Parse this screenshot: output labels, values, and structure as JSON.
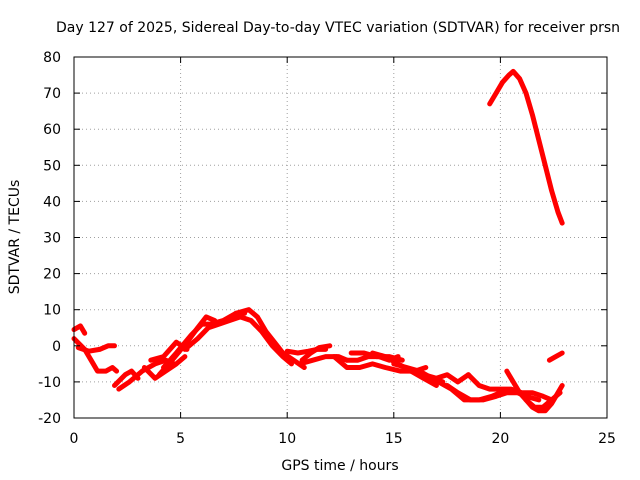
{
  "chart_data": {
    "type": "line",
    "title": "Day 127 of 2025, Sidereal Day-to-day VTEC variation (SDTVAR) for receiver prsn",
    "xlabel": "GPS time / hours",
    "ylabel": "SDTVAR / TECUs",
    "xlim": [
      0,
      25
    ],
    "ylim": [
      -20,
      80
    ],
    "xticks": [
      0,
      5,
      10,
      15,
      20,
      25
    ],
    "yticks": [
      -20,
      -10,
      0,
      10,
      20,
      30,
      40,
      50,
      60,
      70,
      80
    ],
    "grid": true,
    "legend": "none",
    "color": "#ff0000",
    "series": [
      {
        "name": "trace-1",
        "x": [
          0.0,
          0.3,
          0.5
        ],
        "y": [
          4.5,
          5.5,
          3.5
        ]
      },
      {
        "name": "trace-2",
        "x": [
          0.0,
          0.5,
          0.8,
          1.1,
          1.5,
          1.8,
          2.0
        ],
        "y": [
          2,
          -1,
          -4,
          -7,
          -7,
          -6,
          -7
        ]
      },
      {
        "name": "trace-3",
        "x": [
          0.2,
          0.7,
          1.2,
          1.6,
          1.9
        ],
        "y": [
          -0.5,
          -1.5,
          -1,
          0,
          0
        ]
      },
      {
        "name": "trace-4",
        "x": [
          1.9,
          2.4,
          2.7,
          3.0
        ],
        "y": [
          -11,
          -8,
          -7,
          -9
        ]
      },
      {
        "name": "trace-5",
        "x": [
          2.1,
          2.6,
          3.2,
          3.8,
          4.3,
          4.7
        ],
        "y": [
          -12,
          -10,
          -7,
          -5,
          -4,
          -5
        ]
      },
      {
        "name": "trace-6",
        "x": [
          3.3,
          3.8,
          4.3,
          4.8,
          5.2
        ],
        "y": [
          -6,
          -9,
          -7,
          -5,
          -3
        ]
      },
      {
        "name": "trace-7",
        "x": [
          3.6,
          4.2,
          4.8,
          5.3
        ],
        "y": [
          -4,
          -3,
          1,
          -1
        ]
      },
      {
        "name": "trace-8",
        "x": [
          4.0,
          4.6,
          5.3,
          5.8,
          6.2,
          6.6
        ],
        "y": [
          -8,
          -4,
          1,
          5,
          8,
          7
        ]
      },
      {
        "name": "trace-9",
        "x": [
          4.2,
          4.8,
          5.5,
          6.0,
          6.4,
          7.0,
          7.6,
          8.0
        ],
        "y": [
          -6,
          -2,
          3,
          6,
          6,
          7,
          9,
          9
        ]
      },
      {
        "name": "trace-10",
        "x": [
          5.2,
          5.8,
          6.3,
          6.8,
          7.3,
          7.8,
          8.3,
          8.8,
          9.3,
          9.8,
          10.2
        ],
        "y": [
          -1,
          2,
          5,
          6,
          7,
          8,
          7,
          4,
          0,
          -3,
          -5
        ]
      },
      {
        "name": "trace-11",
        "x": [
          7.6,
          8.2,
          8.6,
          9.0,
          9.4,
          9.8,
          10.3,
          10.8
        ],
        "y": [
          9,
          10,
          8,
          4,
          1,
          -2,
          -4,
          -6
        ]
      },
      {
        "name": "trace-12",
        "x": [
          10.0,
          10.5,
          11.0,
          11.4,
          11.8
        ],
        "y": [
          -1.5,
          -2,
          -1.5,
          -1,
          -1
        ]
      },
      {
        "name": "trace-13",
        "x": [
          10.7,
          11.1,
          11.5,
          12.0
        ],
        "y": [
          -4,
          -2,
          -0.5,
          0
        ]
      },
      {
        "name": "trace-14",
        "x": [
          10.6,
          11.2,
          11.8,
          12.4,
          12.8
        ],
        "y": [
          -5,
          -4,
          -3,
          -3,
          -4
        ]
      },
      {
        "name": "trace-15",
        "x": [
          12.3,
          12.8,
          13.3,
          13.8,
          14.3,
          14.8,
          15.2
        ],
        "y": [
          -3,
          -4,
          -4,
          -3,
          -3,
          -4,
          -3
        ]
      },
      {
        "name": "trace-16",
        "x": [
          12.2,
          12.8,
          13.4,
          14.0,
          14.6,
          15.3,
          16.0,
          16.5
        ],
        "y": [
          -3,
          -6,
          -6,
          -5,
          -6,
          -7,
          -7,
          -6
        ]
      },
      {
        "name": "trace-17",
        "x": [
          13.0,
          13.6,
          14.2,
          14.8,
          15.4
        ],
        "y": [
          -2,
          -2,
          -3,
          -3,
          -4
        ]
      },
      {
        "name": "trace-18",
        "x": [
          14.0,
          14.6,
          15.2,
          15.8,
          16.4,
          17.0
        ],
        "y": [
          -2,
          -3,
          -5,
          -7,
          -9,
          -11
        ]
      },
      {
        "name": "trace-19",
        "x": [
          15.0,
          15.6,
          16.2,
          16.8,
          17.3
        ],
        "y": [
          -5,
          -6,
          -7,
          -9,
          -10
        ]
      },
      {
        "name": "trace-20",
        "x": [
          15.8,
          16.4,
          17.0,
          17.5,
          18.0,
          18.5
        ],
        "y": [
          -7,
          -8,
          -9,
          -8,
          -10,
          -8
        ]
      },
      {
        "name": "trace-21",
        "x": [
          16.5,
          17.1,
          17.7,
          18.3,
          19.0,
          19.6,
          20.0
        ],
        "y": [
          -9,
          -10,
          -12,
          -15,
          -15,
          -14,
          -13
        ]
      },
      {
        "name": "trace-22",
        "x": [
          17.5,
          18.0,
          18.6,
          19.2,
          19.8,
          20.3,
          20.8,
          21.2,
          21.8
        ],
        "y": [
          -11,
          -13,
          -15,
          -15,
          -14,
          -13,
          -13,
          -14,
          -15
        ]
      },
      {
        "name": "trace-23",
        "x": [
          18.5,
          19.0,
          19.5,
          20.0,
          20.5,
          21.0,
          21.5,
          22.0,
          22.4
        ],
        "y": [
          -8,
          -11,
          -12,
          -12,
          -12,
          -13,
          -13,
          -14,
          -15
        ]
      },
      {
        "name": "trace-24",
        "x": [
          20.3,
          20.6,
          20.9,
          21.2,
          21.5,
          21.8,
          22.1,
          22.4,
          22.7,
          22.9
        ],
        "y": [
          -7,
          -10,
          -13,
          -15,
          -17,
          -18,
          -18,
          -16,
          -13,
          -11
        ]
      },
      {
        "name": "trace-25",
        "x": [
          21.2,
          21.6,
          22.0,
          22.4,
          22.8
        ],
        "y": [
          -15,
          -17,
          -17,
          -15,
          -13
        ]
      },
      {
        "name": "trace-26",
        "x": [
          22.3,
          22.6,
          22.9
        ],
        "y": [
          -4,
          -3,
          -2
        ]
      },
      {
        "name": "trace-27",
        "x": [
          19.5,
          19.8,
          20.1,
          20.4,
          20.6,
          20.9,
          21.2,
          21.5,
          21.8,
          22.1,
          22.4,
          22.7,
          22.9
        ],
        "y": [
          67,
          70,
          73,
          75,
          76,
          74,
          70,
          64,
          57,
          50,
          43,
          37,
          34
        ]
      }
    ]
  }
}
